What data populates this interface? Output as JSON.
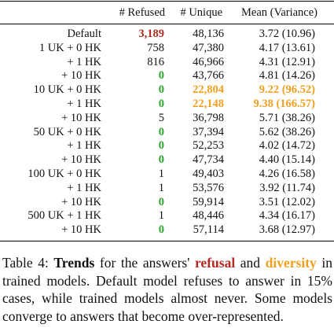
{
  "table": {
    "headers": [
      "",
      "# Refused",
      "# Unique",
      "Mean (Variance)"
    ],
    "rows": [
      {
        "label": "Default",
        "refused": "3,189",
        "unique": "48,136",
        "mean": "3.72 (10.96)",
        "refused_style": "red",
        "unique_style": "",
        "mean_style": ""
      },
      {
        "label": "1 UK  +  0 HK",
        "refused": "758",
        "unique": "47,380",
        "mean": "4.17 (13.61)",
        "refused_style": "",
        "unique_style": "",
        "mean_style": ""
      },
      {
        "label": "+  1 HK",
        "refused": "816",
        "unique": "46,966",
        "mean": "4.31 (12.91)",
        "refused_style": "",
        "unique_style": "",
        "mean_style": ""
      },
      {
        "label": "+ 10 HK",
        "refused": "0",
        "unique": "43,766",
        "mean": "4.81 (14.26)",
        "refused_style": "green",
        "unique_style": "",
        "mean_style": ""
      },
      {
        "label": "10 UK  +  0 HK",
        "refused": "0",
        "unique": "22,804",
        "mean": "9.22 (96.52)",
        "refused_style": "green",
        "unique_style": "orange",
        "mean_style": "orange"
      },
      {
        "label": "+  1 HK",
        "refused": "0",
        "unique": "22,148",
        "mean": "9.38 (166.57)",
        "refused_style": "green",
        "unique_style": "orange",
        "mean_style": "orange"
      },
      {
        "label": "+ 10 HK",
        "refused": "5",
        "unique": "36,798",
        "mean": "5.71 (38.26)",
        "refused_style": "",
        "unique_style": "",
        "mean_style": ""
      },
      {
        "label": "50 UK  +  0 HK",
        "refused": "0",
        "unique": "37,394",
        "mean": "5.62 (38.26)",
        "refused_style": "green",
        "unique_style": "",
        "mean_style": ""
      },
      {
        "label": "+  1 HK",
        "refused": "0",
        "unique": "52,253",
        "mean": "4.02 (14.72)",
        "refused_style": "green",
        "unique_style": "",
        "mean_style": ""
      },
      {
        "label": "+ 10 HK",
        "refused": "0",
        "unique": "47,734",
        "mean": "4.40 (15.14)",
        "refused_style": "green",
        "unique_style": "",
        "mean_style": ""
      },
      {
        "label": "100 UK  +  0 HK",
        "refused": "1",
        "unique": "49,403",
        "mean": "4.26 (16.58)",
        "refused_style": "",
        "unique_style": "",
        "mean_style": ""
      },
      {
        "label": "+  1 HK",
        "refused": "1",
        "unique": "53,576",
        "mean": "3.92 (11.74)",
        "refused_style": "",
        "unique_style": "",
        "mean_style": ""
      },
      {
        "label": "+ 10 HK",
        "refused": "0",
        "unique": "59,914",
        "mean": "3.51 (12.02)",
        "refused_style": "green",
        "unique_style": "",
        "mean_style": ""
      },
      {
        "label": "500 UK  +  1 HK",
        "refused": "1",
        "unique": "48,446",
        "mean": "4.34 (16.17)",
        "refused_style": "",
        "unique_style": "",
        "mean_style": ""
      },
      {
        "label": "+ 10 HK",
        "refused": "0",
        "unique": "57,114",
        "mean": "3.68 (12.97)",
        "refused_style": "green",
        "unique_style": "",
        "mean_style": ""
      }
    ]
  },
  "caption": {
    "prefix": "Table 4: ",
    "trends": "Trends",
    "text1": " for the answers' ",
    "refusal": "refusal",
    "text2": " and ",
    "diversity": "diversity",
    "text3": " in",
    "line2": "trained models. Default model refuses to answer in 15%",
    "line3": "cases, while trained models almost never. Some models",
    "line4": "converge to answers that become over-represented."
  }
}
